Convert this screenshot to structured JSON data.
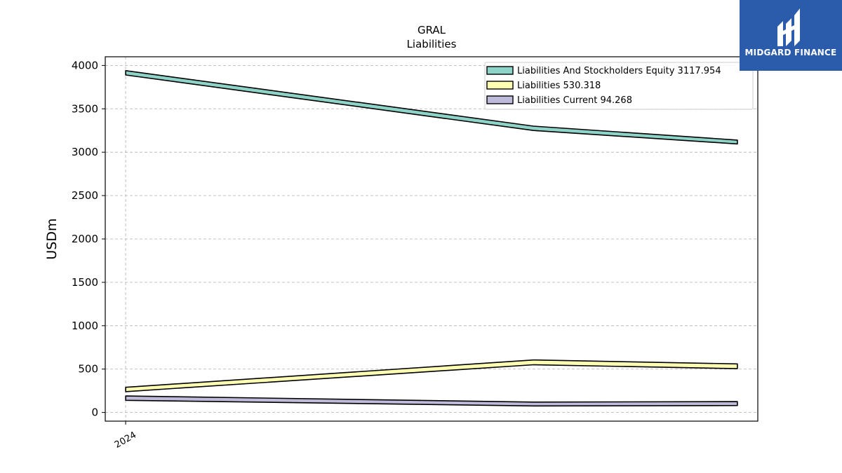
{
  "brand": {
    "name": "MIDGARD FINANCE",
    "color": "#2b5bab"
  },
  "chart_data": {
    "type": "area",
    "title": "GRAL",
    "subtitle": "Liabilities",
    "xlabel": "",
    "ylabel": "USDm",
    "x_ticks": [
      "2024"
    ],
    "x": [
      0,
      1,
      1.5
    ],
    "ylim": [
      -100,
      4100
    ],
    "y_ticks": [
      0,
      500,
      1000,
      1500,
      2000,
      2500,
      3000,
      3500,
      4000
    ],
    "grid": true,
    "legend_position": "top-right",
    "series": [
      {
        "name": "Liabilities And Stockholders Equity",
        "legend_label": "Liabilities And Stockholders Equity  3117.954",
        "color": "#8dd3c7",
        "lower": [
          3890,
          3250,
          3095
        ],
        "upper": [
          3940,
          3300,
          3140
        ]
      },
      {
        "name": "Liabilities",
        "legend_label": "Liabilities  530.318",
        "color": "#ffffb3",
        "lower": [
          240,
          550,
          505
        ],
        "upper": [
          290,
          605,
          560
        ]
      },
      {
        "name": "Liabilities Current",
        "legend_label": "Liabilities Current  94.268",
        "color": "#bebada",
        "lower": [
          140,
          75,
          80
        ],
        "upper": [
          190,
          120,
          125
        ]
      }
    ]
  }
}
